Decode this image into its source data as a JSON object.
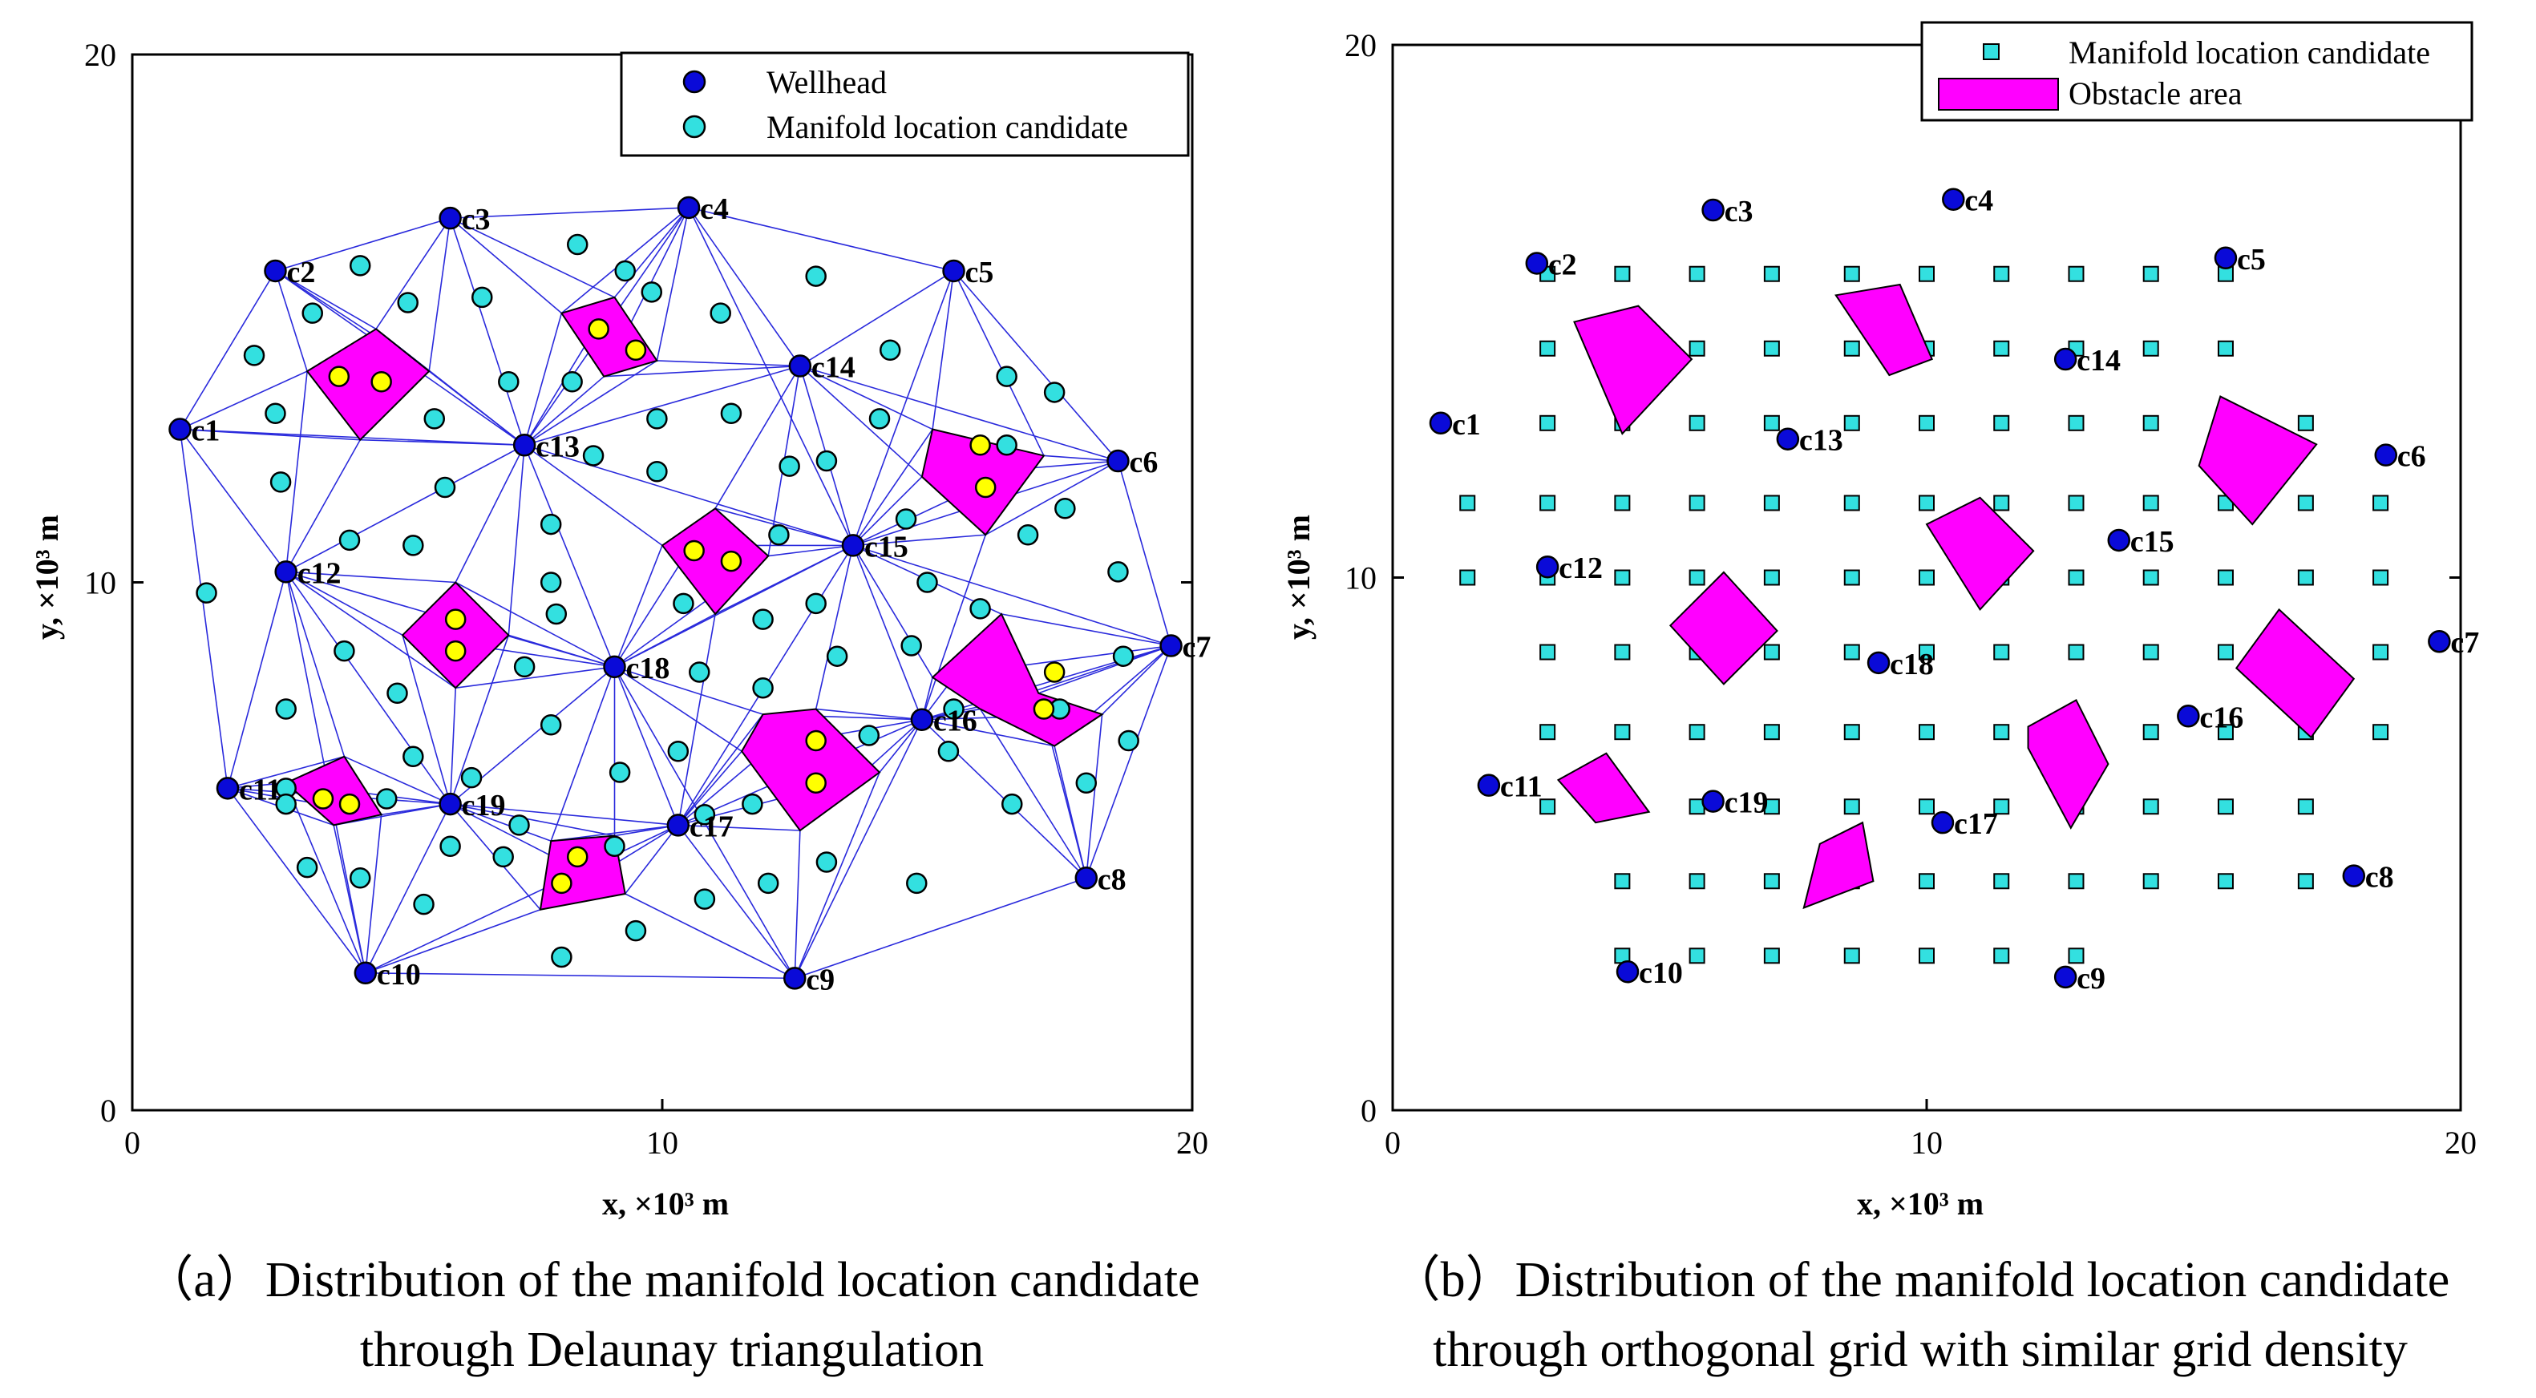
{
  "colors": {
    "wellhead": "#0a0ad8",
    "manifold": "#33e0e0",
    "obstacle": "#ff00ff",
    "inner_point": "#ffff00",
    "mesh": "#2a2adc"
  },
  "chart_data": [
    {
      "type": "scatter",
      "panel": "a",
      "caption_line1": "（a）Distribution of the manifold location candidate",
      "caption_line2": "through Delaunay triangulation",
      "xlabel": "x, ×10³ m",
      "ylabel": "y, ×10³ m",
      "xlim": [
        0,
        20
      ],
      "ylim": [
        0,
        20
      ],
      "xticks": [
        "0",
        "10",
        "20"
      ],
      "yticks": [
        "0",
        "10",
        "20"
      ],
      "legend_position": "top-right",
      "legend": [
        "Wellhead",
        "Manifold location candidate"
      ],
      "wellheads": [
        {
          "name": "c1",
          "x": 0.9,
          "y": 12.9
        },
        {
          "name": "c2",
          "x": 2.7,
          "y": 15.9
        },
        {
          "name": "c3",
          "x": 6.0,
          "y": 16.9
        },
        {
          "name": "c4",
          "x": 10.5,
          "y": 17.1
        },
        {
          "name": "c5",
          "x": 15.5,
          "y": 15.9
        },
        {
          "name": "c6",
          "x": 18.6,
          "y": 12.3
        },
        {
          "name": "c7",
          "x": 19.6,
          "y": 8.8
        },
        {
          "name": "c8",
          "x": 18.0,
          "y": 4.4
        },
        {
          "name": "c9",
          "x": 12.5,
          "y": 2.5
        },
        {
          "name": "c10",
          "x": 4.4,
          "y": 2.6
        },
        {
          "name": "c11",
          "x": 1.8,
          "y": 6.1
        },
        {
          "name": "c12",
          "x": 2.9,
          "y": 10.2
        },
        {
          "name": "c13",
          "x": 7.4,
          "y": 12.6
        },
        {
          "name": "c14",
          "x": 12.6,
          "y": 14.1
        },
        {
          "name": "c15",
          "x": 13.6,
          "y": 10.7
        },
        {
          "name": "c16",
          "x": 14.9,
          "y": 7.4
        },
        {
          "name": "c17",
          "x": 10.3,
          "y": 5.4
        },
        {
          "name": "c18",
          "x": 9.1,
          "y": 8.4
        },
        {
          "name": "c19",
          "x": 6.0,
          "y": 5.8
        }
      ],
      "manifold_candidates": [
        [
          1.4,
          9.8
        ],
        [
          2.3,
          14.3
        ],
        [
          2.7,
          13.2
        ],
        [
          2.8,
          11.9
        ],
        [
          2.9,
          7.6
        ],
        [
          2.9,
          6.1
        ],
        [
          2.9,
          5.8
        ],
        [
          3.4,
          15.1
        ],
        [
          3.3,
          4.6
        ],
        [
          4.0,
          8.7
        ],
        [
          4.1,
          10.8
        ],
        [
          4.3,
          16.0
        ],
        [
          4.3,
          4.4
        ],
        [
          4.8,
          5.9
        ],
        [
          5.0,
          7.9
        ],
        [
          5.2,
          15.3
        ],
        [
          5.3,
          10.7
        ],
        [
          5.3,
          6.7
        ],
        [
          5.5,
          3.9
        ],
        [
          5.7,
          13.1
        ],
        [
          5.9,
          11.8
        ],
        [
          6.0,
          5.0
        ],
        [
          6.4,
          6.3
        ],
        [
          6.6,
          15.4
        ],
        [
          7.0,
          4.8
        ],
        [
          7.1,
          13.8
        ],
        [
          7.3,
          5.4
        ],
        [
          7.4,
          8.4
        ],
        [
          7.9,
          11.1
        ],
        [
          7.9,
          10.0
        ],
        [
          7.9,
          7.3
        ],
        [
          8.0,
          9.4
        ],
        [
          8.3,
          13.8
        ],
        [
          8.4,
          16.4
        ],
        [
          8.1,
          2.9
        ],
        [
          8.7,
          12.4
        ],
        [
          9.1,
          5.0
        ],
        [
          9.2,
          6.4
        ],
        [
          9.3,
          15.9
        ],
        [
          9.5,
          3.4
        ],
        [
          9.8,
          15.5
        ],
        [
          9.9,
          12.1
        ],
        [
          9.9,
          13.1
        ],
        [
          10.3,
          6.8
        ],
        [
          10.4,
          9.6
        ],
        [
          10.7,
          8.3
        ],
        [
          10.8,
          4.0
        ],
        [
          10.8,
          5.6
        ],
        [
          11.1,
          15.1
        ],
        [
          11.3,
          13.2
        ],
        [
          11.7,
          5.8
        ],
        [
          11.9,
          8.0
        ],
        [
          11.9,
          9.3
        ],
        [
          12.0,
          4.3
        ],
        [
          12.2,
          10.9
        ],
        [
          12.4,
          12.2
        ],
        [
          12.9,
          15.8
        ],
        [
          12.9,
          9.6
        ],
        [
          13.1,
          4.7
        ],
        [
          13.1,
          12.3
        ],
        [
          13.3,
          8.6
        ],
        [
          13.9,
          7.1
        ],
        [
          14.1,
          13.1
        ],
        [
          14.3,
          14.4
        ],
        [
          14.6,
          11.2
        ],
        [
          14.7,
          8.8
        ],
        [
          14.8,
          4.3
        ],
        [
          15.0,
          10.0
        ],
        [
          15.4,
          6.8
        ],
        [
          15.5,
          7.6
        ],
        [
          16.0,
          9.5
        ],
        [
          16.5,
          12.6
        ],
        [
          16.5,
          13.9
        ],
        [
          16.6,
          5.8
        ],
        [
          16.9,
          10.9
        ],
        [
          17.4,
          13.6
        ],
        [
          17.5,
          7.6
        ],
        [
          17.6,
          11.4
        ],
        [
          18.0,
          6.2
        ],
        [
          18.6,
          10.2
        ],
        [
          18.7,
          8.6
        ],
        [
          18.8,
          7.0
        ]
      ],
      "obstacles": [
        [
          [
            4.6,
            14.8
          ],
          [
            5.6,
            14.0
          ],
          [
            4.3,
            12.7
          ],
          [
            3.3,
            14.0
          ]
        ],
        [
          [
            8.1,
            15.1
          ],
          [
            9.1,
            15.4
          ],
          [
            9.9,
            14.2
          ],
          [
            8.9,
            13.9
          ]
        ],
        [
          [
            10.0,
            10.7
          ],
          [
            11.0,
            11.4
          ],
          [
            12.0,
            10.5
          ],
          [
            11.0,
            9.4
          ]
        ],
        [
          [
            15.1,
            12.9
          ],
          [
            17.2,
            12.4
          ],
          [
            16.1,
            10.9
          ],
          [
            14.9,
            12.0
          ]
        ],
        [
          [
            5.1,
            9.0
          ],
          [
            6.1,
            10.0
          ],
          [
            7.1,
            9.0
          ],
          [
            6.1,
            8.0
          ]
        ],
        [
          [
            16.4,
            9.4
          ],
          [
            17.1,
            7.9
          ],
          [
            18.3,
            7.5
          ],
          [
            17.4,
            6.9
          ],
          [
            16.0,
            7.6
          ],
          [
            15.1,
            8.2
          ]
        ],
        [
          [
            11.9,
            7.5
          ],
          [
            12.9,
            7.6
          ],
          [
            14.1,
            6.4
          ],
          [
            12.6,
            5.3
          ],
          [
            11.5,
            6.8
          ]
        ],
        [
          [
            2.9,
            6.2
          ],
          [
            4.0,
            6.7
          ],
          [
            4.7,
            5.6
          ],
          [
            3.8,
            5.4
          ]
        ],
        [
          [
            7.9,
            5.1
          ],
          [
            9.1,
            5.2
          ],
          [
            9.3,
            4.1
          ],
          [
            7.7,
            3.8
          ]
        ]
      ],
      "obstacle_points": [
        [
          3.9,
          13.9
        ],
        [
          4.7,
          13.8
        ],
        [
          8.8,
          14.8
        ],
        [
          9.5,
          14.4
        ],
        [
          10.6,
          10.6
        ],
        [
          11.3,
          10.4
        ],
        [
          16.0,
          12.6
        ],
        [
          16.1,
          11.8
        ],
        [
          6.1,
          9.3
        ],
        [
          6.1,
          8.7
        ],
        [
          17.4,
          8.3
        ],
        [
          17.2,
          7.6
        ],
        [
          12.9,
          7.0
        ],
        [
          12.9,
          6.2
        ],
        [
          3.6,
          5.9
        ],
        [
          4.1,
          5.8
        ],
        [
          8.4,
          4.8
        ],
        [
          8.1,
          4.3
        ]
      ],
      "mesh_edges": [
        [
          "c1",
          "c2"
        ],
        [
          "c2",
          "c3"
        ],
        [
          "c3",
          "c4"
        ],
        [
          "c4",
          "c5"
        ],
        [
          "c5",
          "c6"
        ],
        [
          "c6",
          "c7"
        ],
        [
          "c7",
          "c8"
        ],
        [
          "c8",
          "c9"
        ],
        [
          "c9",
          "c10"
        ],
        [
          "c10",
          "c11"
        ],
        [
          "c11",
          "c1"
        ],
        [
          "c1",
          "c12"
        ],
        [
          "c12",
          "c11"
        ],
        [
          "c12",
          "c10"
        ],
        [
          "c12",
          "c19"
        ],
        [
          "c12",
          "c13"
        ],
        [
          "c1",
          "c13"
        ],
        [
          "c2",
          "c13"
        ],
        [
          "c3",
          "c13"
        ],
        [
          "c4",
          "c13"
        ],
        [
          "c13",
          "c15"
        ],
        [
          "c4",
          "c14"
        ],
        [
          "c5",
          "c14"
        ],
        [
          "c14",
          "c15"
        ],
        [
          "c14",
          "c6"
        ],
        [
          "c15",
          "c6"
        ],
        [
          "c15",
          "c7"
        ],
        [
          "c15",
          "c16"
        ],
        [
          "c16",
          "c7"
        ],
        [
          "c16",
          "c8"
        ],
        [
          "c16",
          "c9"
        ],
        [
          "c16",
          "c17"
        ],
        [
          "c15",
          "c17"
        ],
        [
          "c15",
          "c18"
        ],
        [
          "c18",
          "c17"
        ],
        [
          "c18",
          "c19"
        ],
        [
          "c18",
          "c9"
        ],
        [
          "c18",
          "c12"
        ],
        [
          "c13",
          "c18"
        ],
        [
          "c19",
          "c17"
        ],
        [
          "c19",
          "c10"
        ],
        [
          "c19",
          "c11"
        ],
        [
          "c17",
          "c9"
        ],
        [
          "c17",
          "c10"
        ],
        [
          "c4",
          "c15"
        ],
        [
          "c5",
          "c15"
        ],
        [
          "c14",
          "c13"
        ]
      ]
    },
    {
      "type": "scatter",
      "panel": "b",
      "caption_line1": "（b）Distribution of the manifold location candidate",
      "caption_line2": "through orthogonal grid with similar grid density",
      "xlabel": "x, ×10³ m",
      "ylabel": "y, ×10³ m",
      "xlim": [
        0,
        20
      ],
      "ylim": [
        0,
        20
      ],
      "xticks": [
        "0",
        "10",
        "20"
      ],
      "yticks": [
        "0",
        "10",
        "20"
      ],
      "legend_position": "top-right",
      "legend": [
        "Manifold location candidate",
        "Obstacle area"
      ],
      "wellheads": [
        {
          "name": "c1",
          "x": 0.9,
          "y": 12.9
        },
        {
          "name": "c2",
          "x": 2.7,
          "y": 15.9
        },
        {
          "name": "c3",
          "x": 6.0,
          "y": 16.9
        },
        {
          "name": "c4",
          "x": 10.5,
          "y": 17.1
        },
        {
          "name": "c5",
          "x": 15.6,
          "y": 16.0
        },
        {
          "name": "c6",
          "x": 18.6,
          "y": 12.3
        },
        {
          "name": "c7",
          "x": 19.6,
          "y": 8.8
        },
        {
          "name": "c8",
          "x": 18.0,
          "y": 4.4
        },
        {
          "name": "c9",
          "x": 12.6,
          "y": 2.5
        },
        {
          "name": "c10",
          "x": 4.4,
          "y": 2.6
        },
        {
          "name": "c11",
          "x": 1.8,
          "y": 6.1
        },
        {
          "name": "c12",
          "x": 2.9,
          "y": 10.2
        },
        {
          "name": "c13",
          "x": 7.4,
          "y": 12.6
        },
        {
          "name": "c14",
          "x": 12.6,
          "y": 14.1
        },
        {
          "name": "c15",
          "x": 13.6,
          "y": 10.7
        },
        {
          "name": "c16",
          "x": 14.9,
          "y": 7.4
        },
        {
          "name": "c17",
          "x": 10.3,
          "y": 5.4
        },
        {
          "name": "c18",
          "x": 9.1,
          "y": 8.4
        },
        {
          "name": "c19",
          "x": 6.0,
          "y": 5.8
        }
      ],
      "grid_x": [
        1.4,
        2.9,
        4.3,
        5.7,
        7.1,
        8.6,
        10.0,
        11.4,
        12.8,
        14.2,
        15.6,
        17.1,
        18.5
      ],
      "grid_y": [
        2.9,
        4.3,
        5.7,
        7.1,
        8.6,
        10.0,
        11.4,
        12.9,
        14.3,
        15.7
      ],
      "grid_rows": [
        {
          "y": 15.7,
          "from": 2.9,
          "to": 15.6
        },
        {
          "y": 14.3,
          "from": 2.9,
          "to": 15.6
        },
        {
          "y": 12.9,
          "from": 2.9,
          "to": 17.1
        },
        {
          "y": 11.4,
          "from": 1.4,
          "to": 18.5
        },
        {
          "y": 10.0,
          "from": 1.4,
          "to": 18.5
        },
        {
          "y": 8.6,
          "from": 2.9,
          "to": 18.5
        },
        {
          "y": 7.1,
          "from": 2.9,
          "to": 18.5
        },
        {
          "y": 5.7,
          "from": 2.9,
          "to": 17.1
        },
        {
          "y": 4.3,
          "from": 4.3,
          "to": 17.1
        },
        {
          "y": 2.9,
          "from": 4.3,
          "to": 12.8
        }
      ],
      "obstacles": [
        [
          [
            3.4,
            14.8
          ],
          [
            4.6,
            15.1
          ],
          [
            5.6,
            14.1
          ],
          [
            4.3,
            12.7
          ]
        ],
        [
          [
            8.3,
            15.3
          ],
          [
            9.5,
            15.5
          ],
          [
            10.1,
            14.1
          ],
          [
            9.3,
            13.8
          ]
        ],
        [
          [
            10.0,
            11.0
          ],
          [
            11.0,
            11.5
          ],
          [
            12.0,
            10.5
          ],
          [
            11.0,
            9.4
          ]
        ],
        [
          [
            15.5,
            13.4
          ],
          [
            17.3,
            12.5
          ],
          [
            16.1,
            11.0
          ],
          [
            15.1,
            12.1
          ]
        ],
        [
          [
            5.2,
            9.1
          ],
          [
            6.2,
            10.1
          ],
          [
            7.2,
            9.0
          ],
          [
            6.2,
            8.0
          ]
        ],
        [
          [
            16.6,
            9.4
          ],
          [
            18.0,
            8.1
          ],
          [
            17.2,
            7.0
          ],
          [
            15.8,
            8.3
          ]
        ],
        [
          [
            11.9,
            7.2
          ],
          [
            12.8,
            7.7
          ],
          [
            13.4,
            6.5
          ],
          [
            12.7,
            5.3
          ],
          [
            11.9,
            6.8
          ]
        ],
        [
          [
            3.1,
            6.2
          ],
          [
            4.0,
            6.7
          ],
          [
            4.8,
            5.6
          ],
          [
            3.8,
            5.4
          ]
        ],
        [
          [
            8.0,
            5.0
          ],
          [
            8.8,
            5.4
          ],
          [
            9.0,
            4.3
          ],
          [
            7.7,
            3.8
          ]
        ]
      ]
    }
  ]
}
